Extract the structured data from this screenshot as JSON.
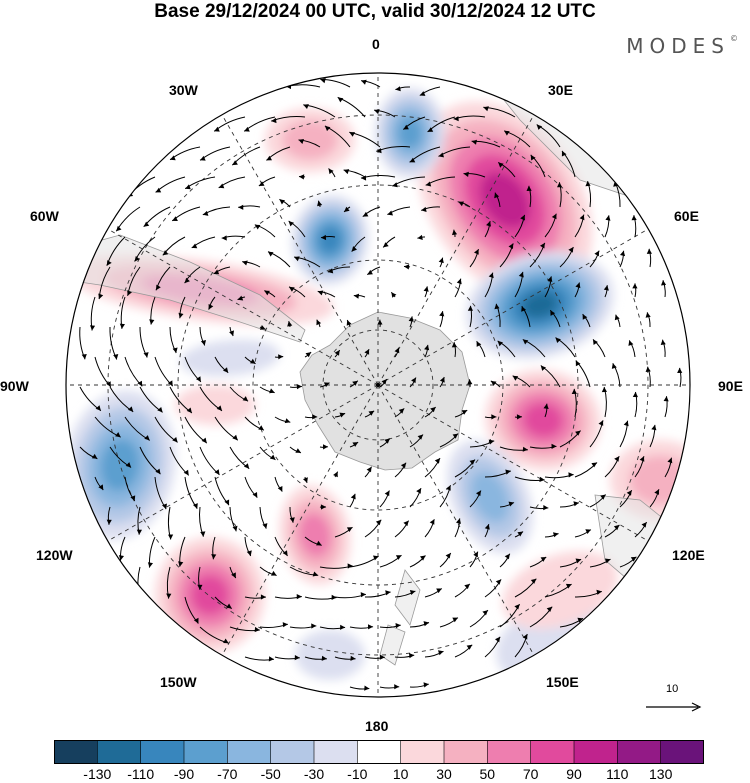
{
  "title": "Base 29/12/2024 00 UTC, valid 30/12/2024 12 UTC",
  "logo": "MODES",
  "logo_mark": "©",
  "longitude_labels": {
    "lon_0": "0",
    "lon_30E": "30E",
    "lon_60E": "60E",
    "lon_90E": "90E",
    "lon_120E": "120E",
    "lon_150E": "150E",
    "lon_180": "180",
    "lon_150W": "150W",
    "lon_120W": "120W",
    "lon_90W": "90W",
    "lon_60W": "60W",
    "lon_30W": "30W"
  },
  "vector_reference": "10",
  "colorbar": {
    "ticks": [
      "-130",
      "-110",
      "-90",
      "-70",
      "-50",
      "-30",
      "-10",
      "10",
      "30",
      "50",
      "70",
      "90",
      "110",
      "130"
    ],
    "colors": [
      "#163f5e",
      "#1f6b97",
      "#3886bd",
      "#5c9fcf",
      "#8ab6df",
      "#b4c8e6",
      "#dcdff0",
      "#ffffff",
      "#fbd8dc",
      "#f5b1c1",
      "#ee7eaf",
      "#e14a9d",
      "#c0238d",
      "#931a86",
      "#6a137a"
    ]
  },
  "map_colors": {
    "land": "#e4e4e4",
    "antarctica": "#e1e1e1",
    "vector": "#000000"
  }
}
